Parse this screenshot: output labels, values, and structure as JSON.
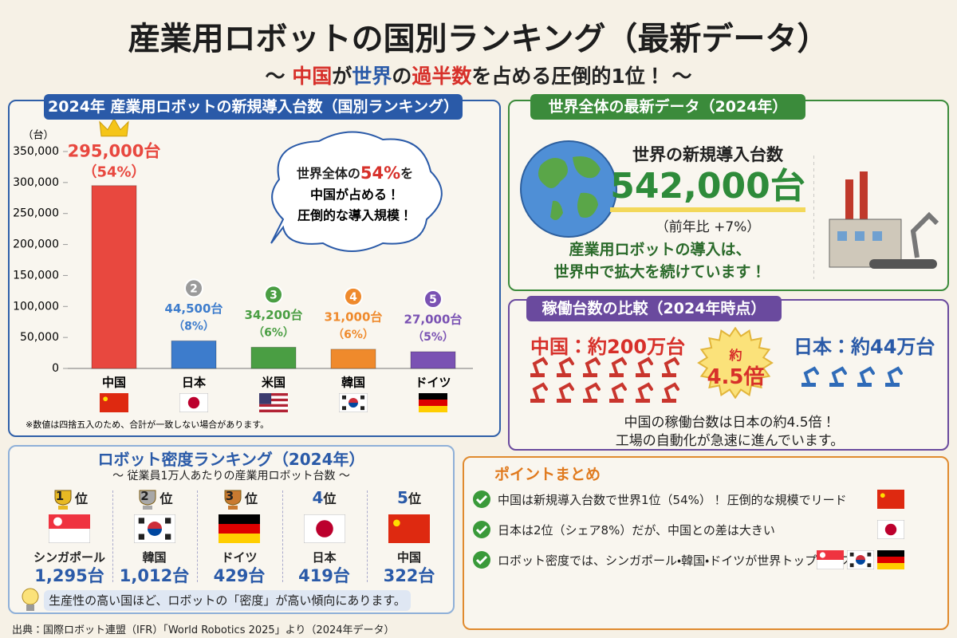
{
  "header": {
    "title": "産業用ロボットの国別ランキング（最新データ）",
    "subtitle": [
      "〜 ",
      "中国",
      "が",
      "世界",
      "の",
      "過半数",
      "を占める圧倒的1位！ 〜"
    ]
  },
  "chart_data": {
    "type": "bar",
    "title": "2024年 産業用ロボットの新規導入台数（国別ランキング）",
    "y_unit": "（台）",
    "categories": [
      "中国",
      "日本",
      "米国",
      "韓国",
      "ドイツ"
    ],
    "values": [
      295000,
      44500,
      34200,
      31000,
      27000
    ],
    "value_labels": [
      "295,000台",
      "44,500台",
      "34,200台",
      "31,000台",
      "27,000台"
    ],
    "share_labels": [
      "（54%）",
      "（8%）",
      "（6%）",
      "（6%）",
      "（5%）"
    ],
    "ranks": [
      1,
      2,
      3,
      4,
      5
    ],
    "colors": [
      "#e8483f",
      "#3d7ccc",
      "#4a9e43",
      "#ef8a2c",
      "#7a52b3"
    ],
    "ylim": [
      0,
      350000
    ],
    "yticks": [
      0,
      {
        "value": 50000,
        "label": "50,000"
      },
      {
        "value": 100000,
        "label": "100,000"
      },
      {
        "value": 150000,
        "label": "150,000"
      },
      {
        "value": 200000,
        "label": "200,000"
      },
      {
        "value": 250000,
        "label": "250,000"
      },
      {
        "value": 300000,
        "label": "300,000"
      },
      {
        "value": 350000,
        "label": "350,000"
      }
    ],
    "note": "※数値は四捨五入のため、合計が一致しない場合があります。",
    "callout": {
      "pre": "世界全体の",
      "em": "54%",
      "post": "を",
      "line2": "中国が占める！",
      "line3": "圧倒的な導入規模！"
    }
  },
  "world": {
    "title": "世界全体の最新データ（2024年）",
    "label": "世界の新規導入台数",
    "value": "542,000台",
    "change": "（前年比 +7%）",
    "lines": [
      "産業用ロボットの導入は、",
      "世界中で拡大を続けています！"
    ]
  },
  "operating": {
    "title": "稼働台数の比較（2024年時点）",
    "china": "中国：約200万台",
    "japan": "日本：約44万台",
    "ratio_prefix": "約",
    "ratio": "4.5倍",
    "lines": [
      "中国の稼働台数は日本の約4.5倍！",
      "工場の自動化が急速に進んでいます。"
    ]
  },
  "density": {
    "title": "ロボット密度ランキング（2024年）",
    "subtitle": "〜 従業員1万人あたりの産業用ロボット台数 〜",
    "rank_suffix": "位",
    "items": [
      {
        "rank": 1,
        "country": "シンガポール",
        "value": "1,295台"
      },
      {
        "rank": 2,
        "country": "韓国",
        "value": "1,012台"
      },
      {
        "rank": 3,
        "country": "ドイツ",
        "value": "429台"
      },
      {
        "rank": 4,
        "country": "日本",
        "value": "419台"
      },
      {
        "rank": 5,
        "country": "中国",
        "value": "322台"
      }
    ],
    "note": "生産性の高い国ほど、ロボットの「密度」が高い傾向にあります。"
  },
  "summary": {
    "title": "ポイントまとめ",
    "items": [
      "中国は新規導入台数で世界1位（54%）！ 圧倒的な規模でリード",
      "日本は2位（シェア8%）だが、中国との差は大きい",
      "ロボット密度では、シンガポール・韓国・ドイツが世界トップクラス"
    ]
  },
  "footer": {
    "source": "出典：国際ロボット連盟（IFR）「World Robotics 2025」より（2024年データ）"
  }
}
